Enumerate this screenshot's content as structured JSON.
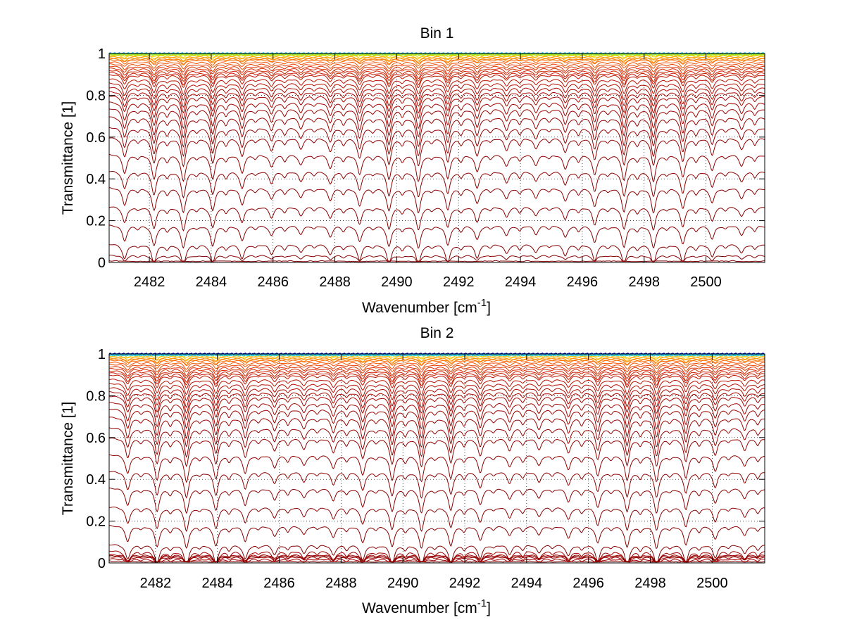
{
  "figure": {
    "background": "#ffffff"
  },
  "chart_data": [
    {
      "type": "line",
      "title": "Bin 1",
      "xlabel": "Wavenumber [cm",
      "xlabel_sup": "-1",
      "xlabel_suffix": "]",
      "ylabel": "Transmittance [1]",
      "xlim": [
        2480.7,
        2501.9
      ],
      "ylim": [
        0,
        1
      ],
      "xticks": [
        2482,
        2484,
        2486,
        2488,
        2490,
        2492,
        2494,
        2496,
        2498,
        2500
      ],
      "xtick_labels": [
        "2482",
        "2484",
        "2486",
        "2488",
        "2490",
        "2492",
        "2494",
        "2496",
        "2498",
        "2500"
      ],
      "yticks": [
        0,
        0.2,
        0.4,
        0.6,
        0.8,
        1
      ],
      "ytick_labels": [
        "0",
        "0.2",
        "0.4",
        "0.6",
        "0.8",
        "1"
      ],
      "grid": true,
      "series_description": "family of transmittance spectra, periodic absorption lines spaced about 0.95 cm-1",
      "line_spacing": 0.95,
      "line_start": 2481.2,
      "baselines": [
        0.995,
        0.99,
        0.985,
        0.98,
        0.975,
        0.97,
        0.96,
        0.95,
        0.94,
        0.93,
        0.92,
        0.91,
        0.9,
        0.88,
        0.86,
        0.84,
        0.82,
        0.8,
        0.77,
        0.74,
        0.7,
        0.65,
        0.6,
        0.52,
        0.44,
        0.36,
        0.27,
        0.18,
        0.09,
        0.035,
        0.01
      ],
      "colors": [
        "#ffd700",
        "#ffc000",
        "#ffa000",
        "#ff8c00",
        "#ff7a00",
        "#ff6600",
        "#f55000",
        "#eb4000",
        "#e03000",
        "#d82800",
        "#d02000",
        "#c81a00",
        "#c01400",
        "#bb1000",
        "#b50d00",
        "#b00a00",
        "#aa0800",
        "#a50600",
        "#a00500",
        "#9c0400",
        "#980300",
        "#950200",
        "#920200",
        "#900100",
        "#8e0100",
        "#8c0000",
        "#8a0000",
        "#880000",
        "#860000",
        "#840000",
        "#820000"
      ],
      "top_band_colors": [
        "#00b0ff",
        "#40d0a0",
        "#80e040",
        "#c0e000"
      ]
    },
    {
      "type": "line",
      "title": "Bin 2",
      "xlabel": "Wavenumber [cm",
      "xlabel_sup": "-1",
      "xlabel_suffix": "]",
      "ylabel": "Transmittance [1]",
      "xlim": [
        2480.5,
        2501.7
      ],
      "ylim": [
        0,
        1
      ],
      "xticks": [
        2482,
        2484,
        2486,
        2488,
        2490,
        2492,
        2494,
        2496,
        2498,
        2500
      ],
      "xtick_labels": [
        "2482",
        "2484",
        "2486",
        "2488",
        "2490",
        "2492",
        "2494",
        "2496",
        "2498",
        "2500"
      ],
      "yticks": [
        0,
        0.2,
        0.4,
        0.6,
        0.8,
        1
      ],
      "ytick_labels": [
        "0",
        "0.2",
        "0.4",
        "0.6",
        "0.8",
        "1"
      ],
      "grid": true,
      "series_description": "family of transmittance spectra, periodic absorption lines spaced about 0.95 cm-1",
      "line_spacing": 0.95,
      "line_start": 2481.1,
      "baselines": [
        0.995,
        0.99,
        0.985,
        0.98,
        0.975,
        0.97,
        0.96,
        0.95,
        0.94,
        0.93,
        0.92,
        0.91,
        0.9,
        0.88,
        0.86,
        0.84,
        0.82,
        0.8,
        0.77,
        0.74,
        0.7,
        0.65,
        0.6,
        0.52,
        0.44,
        0.36,
        0.27,
        0.18,
        0.09,
        0.035,
        0.06,
        0.04,
        0.03,
        0.02,
        0.01
      ],
      "colors": [
        "#ffd700",
        "#ffc000",
        "#ffa000",
        "#ff8c00",
        "#ff7a00",
        "#ff6600",
        "#f55000",
        "#eb4000",
        "#e03000",
        "#d82800",
        "#d02000",
        "#c81a00",
        "#c01400",
        "#bb1000",
        "#b50d00",
        "#b00a00",
        "#aa0800",
        "#a50600",
        "#a00500",
        "#9c0400",
        "#980300",
        "#950200",
        "#920200",
        "#900100",
        "#8e0100",
        "#8c0000",
        "#8a0000",
        "#880000",
        "#860000",
        "#840000",
        "#a00000",
        "#a00000",
        "#a00000",
        "#a00000",
        "#800000"
      ],
      "top_band_colors": [
        "#0000c8",
        "#0040ff",
        "#00a0ff",
        "#40e0c0"
      ]
    }
  ]
}
